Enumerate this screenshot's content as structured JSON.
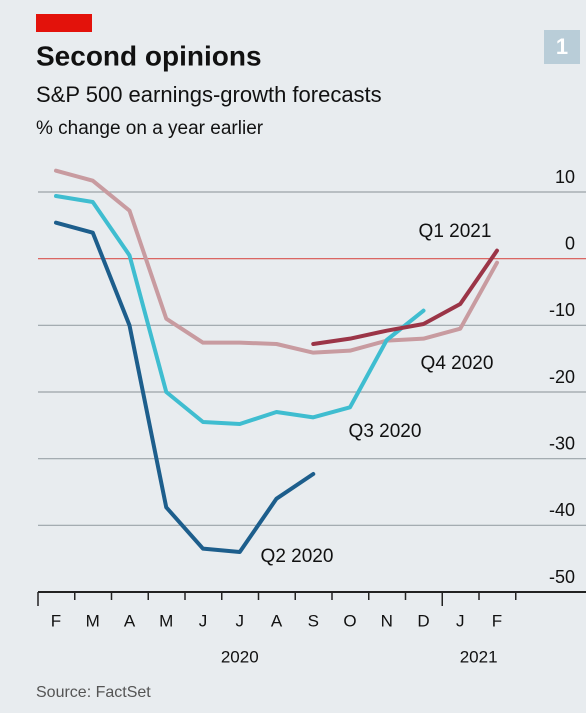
{
  "chart_data": {
    "type": "line",
    "badge": "1",
    "title": "Second opinions",
    "subtitle": "S&P 500 earnings-growth forecasts",
    "y_label": "% change on a year earlier",
    "source": "Source: FactSet",
    "categories": [
      "F",
      "M",
      "A",
      "M",
      "J",
      "J",
      "A",
      "S",
      "O",
      "N",
      "D",
      "J",
      "F"
    ],
    "year_labels": [
      "2020",
      "2021"
    ],
    "ylim": [
      -50,
      10
    ],
    "yticks": [
      10,
      0,
      -10,
      -20,
      -30,
      -40,
      -50
    ],
    "grid": true,
    "series": [
      {
        "name": "Q4 2020",
        "color": "#c89ba0",
        "values": [
          13.2,
          11.7,
          7.2,
          -9,
          -12.6,
          -12.6,
          -12.8,
          -14.1,
          -13.8,
          -12.3,
          -12,
          -10.5,
          -0.6
        ]
      },
      {
        "name": "Q3 2020",
        "color": "#3fbdd0",
        "values": [
          9.4,
          8.5,
          0.5,
          -20,
          -24.5,
          -24.8,
          -23,
          -23.8,
          -22.3,
          -12.2,
          -7.8,
          null,
          null
        ]
      },
      {
        "name": "Q2 2020",
        "color": "#1d5e8c",
        "values": [
          5.4,
          3.9,
          -10,
          -37.3,
          -43.5,
          -44,
          -36,
          -32.3,
          null,
          null,
          null,
          null,
          null
        ]
      },
      {
        "name": "Q1 2021",
        "color": "#9b3547",
        "values": [
          null,
          null,
          null,
          null,
          null,
          null,
          null,
          -12.8,
          -12,
          -10.8,
          -9.8,
          -6.8,
          1.2
        ]
      }
    ]
  }
}
